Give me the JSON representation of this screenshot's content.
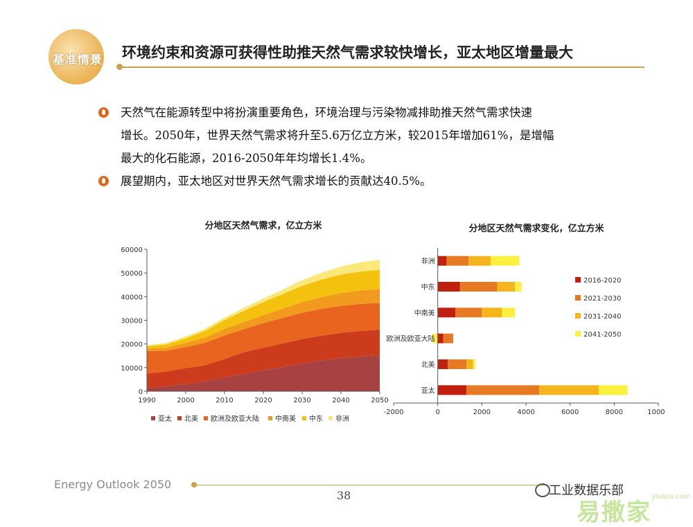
{
  "badge": {
    "label": "基准情景"
  },
  "slide": {
    "title": "环境约束和资源可获得性助推天然气需求较快增长，亚太地区增量最大",
    "bullets": [
      "天然气在能源转型中将扮演重要角色，环境治理与污染物减排助推天然气需求快速",
      "增长。2050年，世界天然气需求将升至5.6万亿立方米，较2015年增加61%，是增幅",
      "最大的化石能源，2016-2050年年均增长1.4%。",
      "展望期内，亚太地区对世界天然气需求增长的贡献达40.5%。"
    ]
  },
  "footer": {
    "brand": "Energy Outlook 2050",
    "page": "38",
    "wechat": "工业数据乐部",
    "watermark": "易撒家",
    "watermark_url": "yisajia.com"
  },
  "colors": {
    "亚太": "#a84242",
    "北美": "#cc3b1c",
    "欧洲及欧亚大陆": "#e8641f",
    "中南美": "#f29a1d",
    "中东": "#f5c10f",
    "非洲": "#fae87a",
    "2016-2020": "#c0210e",
    "2021-2030": "#e57924",
    "2031-2040": "#f4b51f",
    "2041-2050": "#fbf040"
  },
  "chart_data": [
    {
      "type": "area",
      "title": "分地区天然气需求，亿立方米",
      "x": [
        1990,
        1995,
        2000,
        2005,
        2010,
        2015,
        2020,
        2025,
        2030,
        2035,
        2040,
        2045,
        2050
      ],
      "ylim": [
        0,
        60000
      ],
      "yticks": [
        0,
        10000,
        20000,
        30000,
        40000,
        50000,
        60000
      ],
      "xticks": [
        1990,
        2000,
        2010,
        2020,
        2030,
        2040,
        2050
      ],
      "stacked": true,
      "legend_position": "bottom",
      "series": [
        {
          "name": "亚太",
          "values": [
            1500,
            2000,
            3000,
            4200,
            6000,
            7300,
            8800,
            10200,
            11800,
            13000,
            14000,
            14700,
            15200
          ]
        },
        {
          "name": "北美",
          "values": [
            6000,
            6300,
            6800,
            6800,
            7600,
            9200,
            9600,
            10000,
            10300,
            10500,
            10700,
            10800,
            10800
          ]
        },
        {
          "name": "欧洲及欧亚大陆",
          "values": [
            9500,
            8800,
            8900,
            9500,
            10000,
            9800,
            10400,
            10800,
            11100,
            11300,
            11400,
            11400,
            11300
          ]
        },
        {
          "name": "中南美",
          "values": [
            1000,
            1300,
            1800,
            2200,
            2700,
            3000,
            3400,
            3900,
            4500,
            5000,
            5400,
            5700,
            5900
          ]
        },
        {
          "name": "中东",
          "values": [
            1000,
            1400,
            1900,
            2800,
            3800,
            4700,
            5500,
            6200,
            6900,
            7400,
            7800,
            8000,
            8100
          ]
        },
        {
          "name": "非洲",
          "values": [
            500,
            600,
            800,
            1000,
            1100,
            1300,
            1500,
            1900,
            2400,
            2900,
            3400,
            3900,
            4300
          ]
        }
      ]
    },
    {
      "type": "bar",
      "orientation": "horizontal",
      "stacked": true,
      "title": "分地区天然气需求变化，亿立方米",
      "categories": [
        "非洲",
        "中东",
        "中南美",
        "欧洲及欧亚大陆",
        "北美",
        "亚太"
      ],
      "xlim": [
        -2000,
        10000
      ],
      "xticks": [
        -2000,
        0,
        2000,
        4000,
        6000,
        8000,
        10000
      ],
      "legend_position": "right",
      "series": [
        {
          "name": "2016-2020",
          "values": [
            400,
            1000,
            800,
            250,
            450,
            1300
          ]
        },
        {
          "name": "2021-2030",
          "values": [
            1000,
            1700,
            1200,
            450,
            850,
            3300
          ]
        },
        {
          "name": "2031-2040",
          "values": [
            1000,
            800,
            900,
            0,
            300,
            2700
          ]
        },
        {
          "name": "2041-2050",
          "values": [
            1300,
            300,
            600,
            -250,
            100,
            1300
          ]
        }
      ]
    }
  ]
}
